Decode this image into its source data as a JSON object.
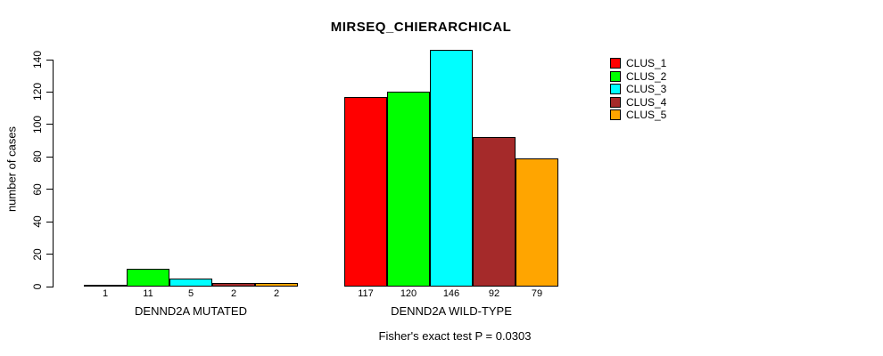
{
  "chart_data": {
    "type": "bar",
    "title": "MIRSEQ_CHIERARCHICAL",
    "ylabel": "number of cases",
    "xlabel": "",
    "ylim": [
      0,
      140
    ],
    "yticks": [
      0,
      20,
      40,
      60,
      80,
      100,
      120,
      140
    ],
    "grid": false,
    "legend_position": "top-right",
    "categories": [
      "DENND2A MUTATED",
      "DENND2A WILD-TYPE"
    ],
    "series": [
      {
        "name": "CLUS_1",
        "color": "#FF0000",
        "values": [
          1,
          117
        ]
      },
      {
        "name": "CLUS_2",
        "color": "#00FF00",
        "values": [
          11,
          120
        ]
      },
      {
        "name": "CLUS_3",
        "color": "#00FFFF",
        "values": [
          5,
          146
        ]
      },
      {
        "name": "CLUS_4",
        "color": "#A52A2A",
        "values": [
          2,
          92
        ]
      },
      {
        "name": "CLUS_5",
        "color": "#FFA500",
        "values": [
          2,
          79
        ]
      }
    ],
    "bar_value_labels_shown": true,
    "annotation": "Fisher's exact test P = 0.0303"
  }
}
